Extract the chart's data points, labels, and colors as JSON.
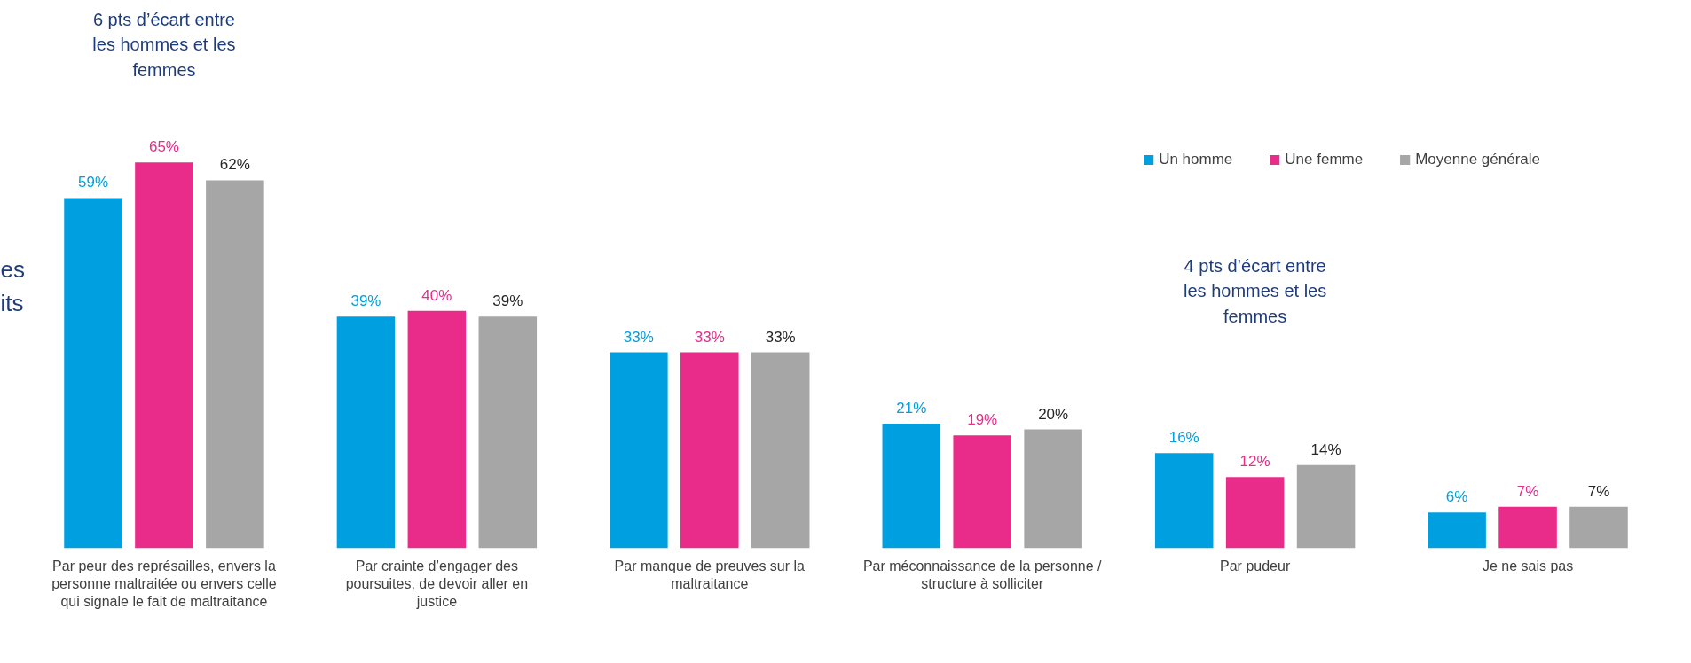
{
  "chart_data": {
    "type": "bar",
    "categories": [
      "Par peur des représailles, envers la personne maltraitée ou envers celle qui signale le fait de maltraitance",
      "Par crainte d’engager des poursuites, de devoir aller en justice",
      "Par manque de preuves sur la maltraitance",
      "Par méconnaissance de la personne / structure à solliciter",
      "Par pudeur",
      "Je ne sais pas"
    ],
    "series": [
      {
        "name": "Un homme",
        "color": "#009fe0",
        "values": [
          59,
          39,
          33,
          21,
          16,
          6
        ],
        "value_labels": [
          "59%",
          "39%",
          "33%",
          "21%",
          "16%",
          "6%"
        ]
      },
      {
        "name": "Une femme",
        "color": "#e92b8a",
        "values": [
          65,
          40,
          33,
          19,
          12,
          7
        ],
        "value_labels": [
          "65%",
          "40%",
          "33%",
          "19%",
          "12%",
          "7%"
        ]
      },
      {
        "name": "Moyenne générale",
        "color": "#a6a6a6",
        "values": [
          62,
          39,
          33,
          20,
          14,
          7
        ],
        "value_labels": [
          "62%",
          "39%",
          "33%",
          "20%",
          "14%",
          "7%"
        ]
      }
    ],
    "legend": "top right",
    "grid": false,
    "annotations": [
      "6 pts d’écart entre les hommes et les femmes",
      "4 pts d’écart entre les hommes et les femmes",
      "es",
      "its"
    ]
  }
}
